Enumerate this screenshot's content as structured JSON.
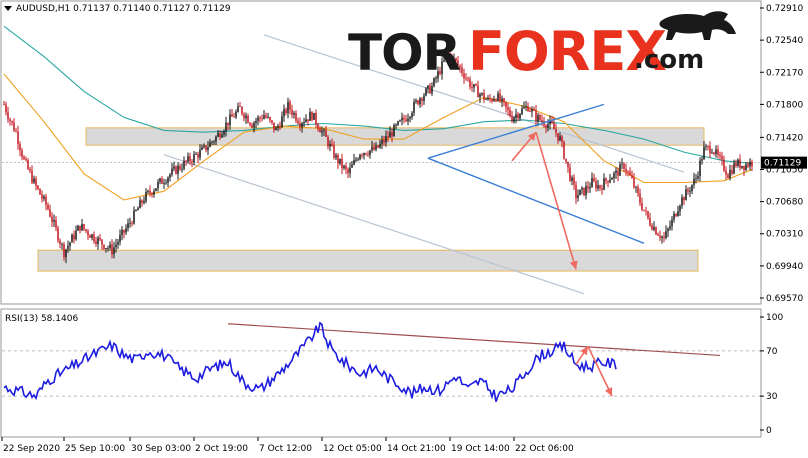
{
  "header": {
    "symbol_line": "AUDUSD,H1  0.71137 0.71140 0.71127 0.71129"
  },
  "watermark": {
    "part1": "TOR",
    "part2": "FOREX",
    "part3": ".com"
  },
  "rsi": {
    "label": "RSI(13) 58.1406"
  },
  "colors": {
    "bull_candle": "#000000",
    "bear_candle": "#c0000a",
    "ma_fast": "#f0a020",
    "ma_slow": "#2aa8a0",
    "zone_fill": "#d9d9d9",
    "zone_border": "#e8b860",
    "channel_gray": "#b8c4d4",
    "triangle_blue": "#3a7fd6",
    "arrow_red": "#f06a60",
    "rsi_line": "#1c1ce0",
    "rsi_trend": "#a05050",
    "watermark_red": "#e8321e"
  },
  "chart_data": [
    {
      "type": "candlestick",
      "title": "AUDUSD,H1",
      "ohlc_current": {
        "open": 0.71137,
        "high": 0.7114,
        "low": 0.71127,
        "close": 0.71129
      },
      "current_price_label": "0.71129",
      "y_ticks": [
        "0.72910",
        "0.72540",
        "0.72170",
        "0.71800",
        "0.71420",
        "0.71050",
        "0.70680",
        "0.70310",
        "0.69940",
        "0.69570"
      ],
      "ylim": [
        0.6957,
        0.7291
      ],
      "x_ticks": [
        "22 Sep 2020",
        "25 Sep 10:00",
        "30 Sep 03:00",
        "2 Oct 19:00",
        "7 Oct 12:00",
        "12 Oct 05:00",
        "14 Oct 21:00",
        "19 Oct 14:00",
        "22 Oct 06:00"
      ],
      "price_path": [
        [
          0,
          0.718
        ],
        [
          3,
          0.7162
        ],
        [
          6,
          0.7148
        ],
        [
          10,
          0.7115
        ],
        [
          16,
          0.7085
        ],
        [
          22,
          0.706
        ],
        [
          30,
          0.701
        ],
        [
          38,
          0.704
        ],
        [
          46,
          0.7025
        ],
        [
          54,
          0.7012
        ],
        [
          62,
          0.704
        ],
        [
          70,
          0.7072
        ],
        [
          78,
          0.709
        ],
        [
          86,
          0.7105
        ],
        [
          94,
          0.7118
        ],
        [
          100,
          0.7128
        ],
        [
          106,
          0.7142
        ],
        [
          112,
          0.716
        ],
        [
          118,
          0.7175
        ],
        [
          124,
          0.7158
        ],
        [
          130,
          0.7168
        ],
        [
          136,
          0.715
        ],
        [
          142,
          0.7178
        ],
        [
          148,
          0.716
        ],
        [
          154,
          0.7168
        ],
        [
          160,
          0.7145
        ],
        [
          166,
          0.7118
        ],
        [
          172,
          0.71
        ],
        [
          178,
          0.7125
        ],
        [
          186,
          0.7128
        ],
        [
          194,
          0.7148
        ],
        [
          202,
          0.7168
        ],
        [
          208,
          0.7188
        ],
        [
          214,
          0.72
        ],
        [
          218,
          0.722
        ],
        [
          222,
          0.7238
        ],
        [
          226,
          0.7228
        ],
        [
          230,
          0.7215
        ],
        [
          234,
          0.72
        ],
        [
          238,
          0.7192
        ],
        [
          242,
          0.7184
        ],
        [
          246,
          0.719
        ],
        [
          250,
          0.7178
        ],
        [
          254,
          0.7165
        ],
        [
          258,
          0.7172
        ],
        [
          262,
          0.7178
        ],
        [
          266,
          0.7165
        ],
        [
          270,
          0.716
        ],
        [
          274,
          0.7155
        ],
        [
          278,
          0.714
        ],
        [
          282,
          0.7105
        ],
        [
          286,
          0.7075
        ],
        [
          290,
          0.708
        ],
        [
          294,
          0.709
        ],
        [
          298,
          0.7085
        ],
        [
          302,
          0.7095
        ],
        [
          306,
          0.71
        ],
        [
          310,
          0.711
        ],
        [
          314,
          0.7092
        ],
        [
          318,
          0.7068
        ],
        [
          322,
          0.7048
        ],
        [
          326,
          0.7035
        ],
        [
          330,
          0.7025
        ],
        [
          334,
          0.7045
        ],
        [
          338,
          0.7068
        ],
        [
          342,
          0.708
        ],
        [
          346,
          0.7095
        ],
        [
          350,
          0.7128
        ],
        [
          354,
          0.713
        ],
        [
          358,
          0.7115
        ],
        [
          362,
          0.71
        ],
        [
          366,
          0.7112
        ],
        [
          370,
          0.711
        ],
        [
          374,
          0.7113
        ]
      ],
      "ma_fast": [
        [
          0,
          0.7215
        ],
        [
          20,
          0.716
        ],
        [
          40,
          0.71
        ],
        [
          60,
          0.707
        ],
        [
          80,
          0.708
        ],
        [
          100,
          0.7115
        ],
        [
          120,
          0.7148
        ],
        [
          140,
          0.7155
        ],
        [
          160,
          0.7152
        ],
        [
          180,
          0.714
        ],
        [
          200,
          0.714
        ],
        [
          220,
          0.7165
        ],
        [
          240,
          0.7188
        ],
        [
          260,
          0.7178
        ],
        [
          280,
          0.716
        ],
        [
          300,
          0.7115
        ],
        [
          320,
          0.709
        ],
        [
          340,
          0.709
        ],
        [
          360,
          0.7092
        ],
        [
          374,
          0.7105
        ]
      ],
      "ma_slow": [
        [
          0,
          0.727
        ],
        [
          20,
          0.7235
        ],
        [
          40,
          0.7195
        ],
        [
          60,
          0.7165
        ],
        [
          80,
          0.715
        ],
        [
          100,
          0.7148
        ],
        [
          120,
          0.715
        ],
        [
          140,
          0.7155
        ],
        [
          160,
          0.7158
        ],
        [
          180,
          0.7155
        ],
        [
          200,
          0.715
        ],
        [
          220,
          0.7152
        ],
        [
          240,
          0.716
        ],
        [
          260,
          0.7162
        ],
        [
          280,
          0.7158
        ],
        [
          300,
          0.715
        ],
        [
          320,
          0.714
        ],
        [
          340,
          0.7125
        ],
        [
          360,
          0.7115
        ],
        [
          374,
          0.7112
        ]
      ],
      "zones": [
        {
          "from": 0.7133,
          "to": 0.7153
        },
        {
          "from": 0.6988,
          "to": 0.7012
        }
      ],
      "channel_lines": [
        [
          [
            130,
            0.726
          ],
          [
            340,
            0.7102
          ]
        ],
        [
          [
            80,
            0.7122
          ],
          [
            290,
            0.6962
          ]
        ]
      ],
      "triangle_lines": [
        [
          [
            212,
            0.7118
          ],
          [
            300,
            0.718
          ]
        ],
        [
          [
            212,
            0.7118
          ],
          [
            320,
            0.702
          ]
        ]
      ],
      "forecast_arrows": [
        [
          [
            254,
            0.7115
          ],
          [
            266,
            0.7148
          ]
        ],
        [
          [
            266,
            0.7148
          ],
          [
            286,
            0.699
          ]
        ]
      ]
    },
    {
      "type": "line",
      "title": "RSI(13)",
      "current_value": 58.1406,
      "y_ticks": [
        "100",
        "70",
        "30",
        "0"
      ],
      "ylim": [
        0,
        100
      ],
      "levels": [
        70,
        30
      ],
      "rsi_path": [
        [
          0,
          38
        ],
        [
          8,
          34
        ],
        [
          16,
          30
        ],
        [
          22,
          44
        ],
        [
          30,
          52
        ],
        [
          38,
          60
        ],
        [
          46,
          68
        ],
        [
          54,
          75
        ],
        [
          60,
          66
        ],
        [
          66,
          62
        ],
        [
          72,
          70
        ],
        [
          80,
          66
        ],
        [
          88,
          54
        ],
        [
          96,
          46
        ],
        [
          104,
          55
        ],
        [
          112,
          60
        ],
        [
          120,
          42
        ],
        [
          128,
          36
        ],
        [
          136,
          48
        ],
        [
          144,
          62
        ],
        [
          152,
          78
        ],
        [
          158,
          92
        ],
        [
          164,
          70
        ],
        [
          170,
          60
        ],
        [
          178,
          50
        ],
        [
          186,
          55
        ],
        [
          192,
          46
        ],
        [
          198,
          40
        ],
        [
          204,
          32
        ],
        [
          210,
          38
        ],
        [
          218,
          35
        ],
        [
          226,
          48
        ],
        [
          232,
          36
        ],
        [
          238,
          44
        ],
        [
          246,
          30
        ],
        [
          254,
          36
        ],
        [
          262,
          54
        ],
        [
          268,
          66
        ],
        [
          274,
          70
        ],
        [
          280,
          74
        ],
        [
          286,
          58
        ],
        [
          292,
          56
        ],
        [
          300,
          60
        ],
        [
          306,
          58
        ]
      ],
      "trend_line": [
        [
          112,
          94
        ],
        [
          358,
          66
        ]
      ],
      "forecast_arrows": [
        [
          [
            286,
            58
          ],
          [
            292,
            74
          ]
        ],
        [
          [
            292,
            74
          ],
          [
            304,
            30
          ]
        ]
      ]
    }
  ]
}
